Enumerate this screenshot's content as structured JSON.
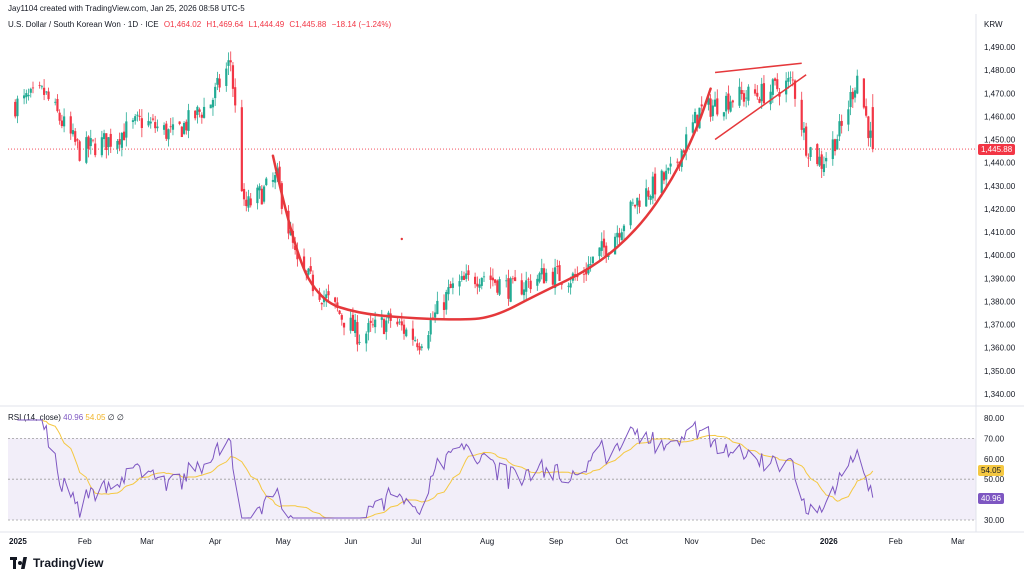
{
  "header": {
    "attribution": "Jay1104 created with TradingView.com, Jan 25, 2026 08:58 UTC-5",
    "symbol": "U.S. Dollar / South Korean Won · 1D · ICE",
    "open_label": "O1,464.02",
    "high_label": "H1,469.64",
    "low_label": "L1,444.49",
    "close_label": "C1,445.88",
    "change_label": "−18.14 (−1.24%)",
    "currency": "KRW"
  },
  "rsi_legend": {
    "label": "RSI (14, close)",
    "rsi_value": "40.96",
    "ma_value": "54.05",
    "icon1": "∅",
    "icon2": "∅"
  },
  "price_badge": "1,445.88",
  "rsi_badge_ma": "54.05",
  "rsi_badge_rsi": "40.96",
  "logo_text": "TradingView",
  "colors": {
    "up": "#22ab94",
    "down": "#f23645",
    "annotation": "#e5383b",
    "rsi_line": "#7e57c2",
    "rsi_ma": "#f5c842",
    "rsi_band": "#ede7f6"
  },
  "chart_data": [
    {
      "type": "candlestick",
      "title": "U.S. Dollar / South Korean Won · 1D · ICE",
      "y_ticks": [
        "1,490.00",
        "1,480.00",
        "1,470.00",
        "1,460.00",
        "1,450.00",
        "1,440.00",
        "1,430.00",
        "1,420.00",
        "1,410.00",
        "1,400.00",
        "1,390.00",
        "1,380.00",
        "1,370.00",
        "1,360.00",
        "1,350.00",
        "1,340.00"
      ],
      "x_ticks": [
        "2025",
        "Feb",
        "Mar",
        "Apr",
        "May",
        "Jun",
        "Jul",
        "Aug",
        "Sep",
        "Oct",
        "Nov",
        "Dec",
        "2026",
        "Feb",
        "Mar"
      ],
      "ylim": [
        1335,
        1497
      ],
      "last_close": 1445.88,
      "approx_close_path": [
        [
          "2025-01-02",
          1465
        ],
        [
          "2025-01-15",
          1470
        ],
        [
          "2025-01-31",
          1445
        ],
        [
          "2025-02-14",
          1450
        ],
        [
          "2025-02-28",
          1458
        ],
        [
          "2025-03-14",
          1452
        ],
        [
          "2025-03-31",
          1466
        ],
        [
          "2025-04-09",
          1484
        ],
        [
          "2025-04-15",
          1420
        ],
        [
          "2025-04-30",
          1433
        ],
        [
          "2025-05-09",
          1395
        ],
        [
          "2025-05-23",
          1380
        ],
        [
          "2025-06-06",
          1365
        ],
        [
          "2025-06-20",
          1372
        ],
        [
          "2025-07-03",
          1363
        ],
        [
          "2025-07-17",
          1385
        ],
        [
          "2025-07-31",
          1392
        ],
        [
          "2025-08-14",
          1385
        ],
        [
          "2025-08-29",
          1392
        ],
        [
          "2025-09-12",
          1390
        ],
        [
          "2025-09-26",
          1405
        ],
        [
          "2025-10-10",
          1425
        ],
        [
          "2025-10-24",
          1435
        ],
        [
          "2025-11-06",
          1462
        ],
        [
          "2025-11-20",
          1468
        ],
        [
          "2025-12-05",
          1470
        ],
        [
          "2025-12-18",
          1475
        ],
        [
          "2025-12-24",
          1448
        ],
        [
          "2025-12-31",
          1440
        ],
        [
          "2026-01-09",
          1455
        ],
        [
          "2026-01-16",
          1478
        ],
        [
          "2026-01-23",
          1445.88
        ]
      ],
      "annotations": [
        "rounded-bottom curve",
        "rising wedge lines"
      ]
    },
    {
      "type": "line",
      "title": "RSI (14, close)",
      "y_ticks": [
        "80.00",
        "70.00",
        "60.00",
        "50.00",
        "40.00",
        "30.00"
      ],
      "ylim": [
        28,
        82
      ],
      "bands": [
        30,
        50,
        70
      ],
      "series": [
        {
          "name": "RSI",
          "last": 40.96
        },
        {
          "name": "RSI MA",
          "last": 54.05
        }
      ]
    }
  ]
}
